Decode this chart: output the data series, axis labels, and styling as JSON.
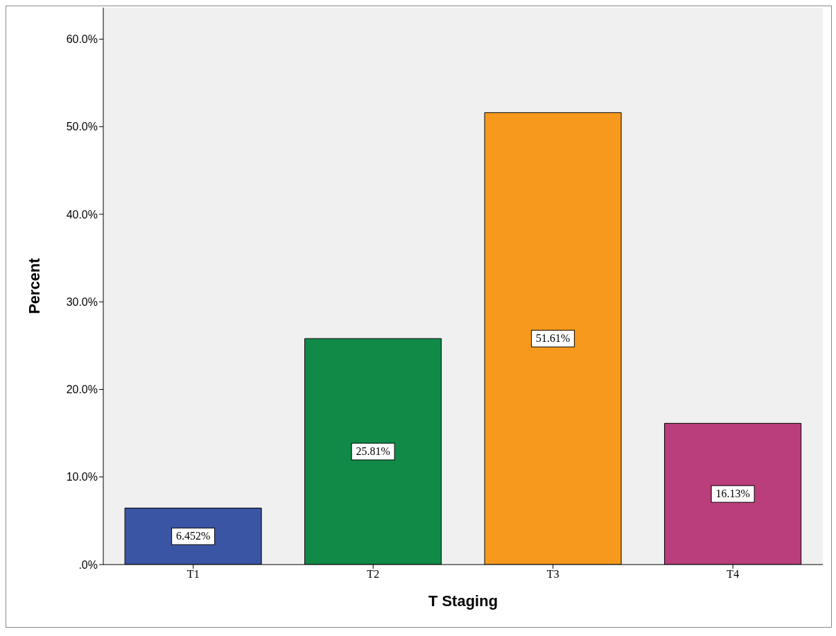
{
  "chart_data": {
    "type": "bar",
    "xlabel": "T Staging",
    "ylabel": "Percent",
    "categories": [
      "T1",
      "T2",
      "T3",
      "T4"
    ],
    "values": [
      6.452,
      25.81,
      51.61,
      16.13
    ],
    "value_labels": [
      "6.452%",
      "25.81%",
      "51.61%",
      "16.13%"
    ],
    "colors": [
      "#3b55a5",
      "#118a48",
      "#f7991d",
      "#b93e7b"
    ],
    "ylim": [
      0,
      63.6
    ],
    "yticks": [
      {
        "value": 0,
        "label": ".0%"
      },
      {
        "value": 10,
        "label": "10.0%"
      },
      {
        "value": 20,
        "label": "20.0%"
      },
      {
        "value": 30,
        "label": "30.0%"
      },
      {
        "value": 40,
        "label": "40.0%"
      },
      {
        "value": 50,
        "label": "50.0%"
      },
      {
        "value": 60,
        "label": "60.0%"
      }
    ],
    "grid": false
  }
}
